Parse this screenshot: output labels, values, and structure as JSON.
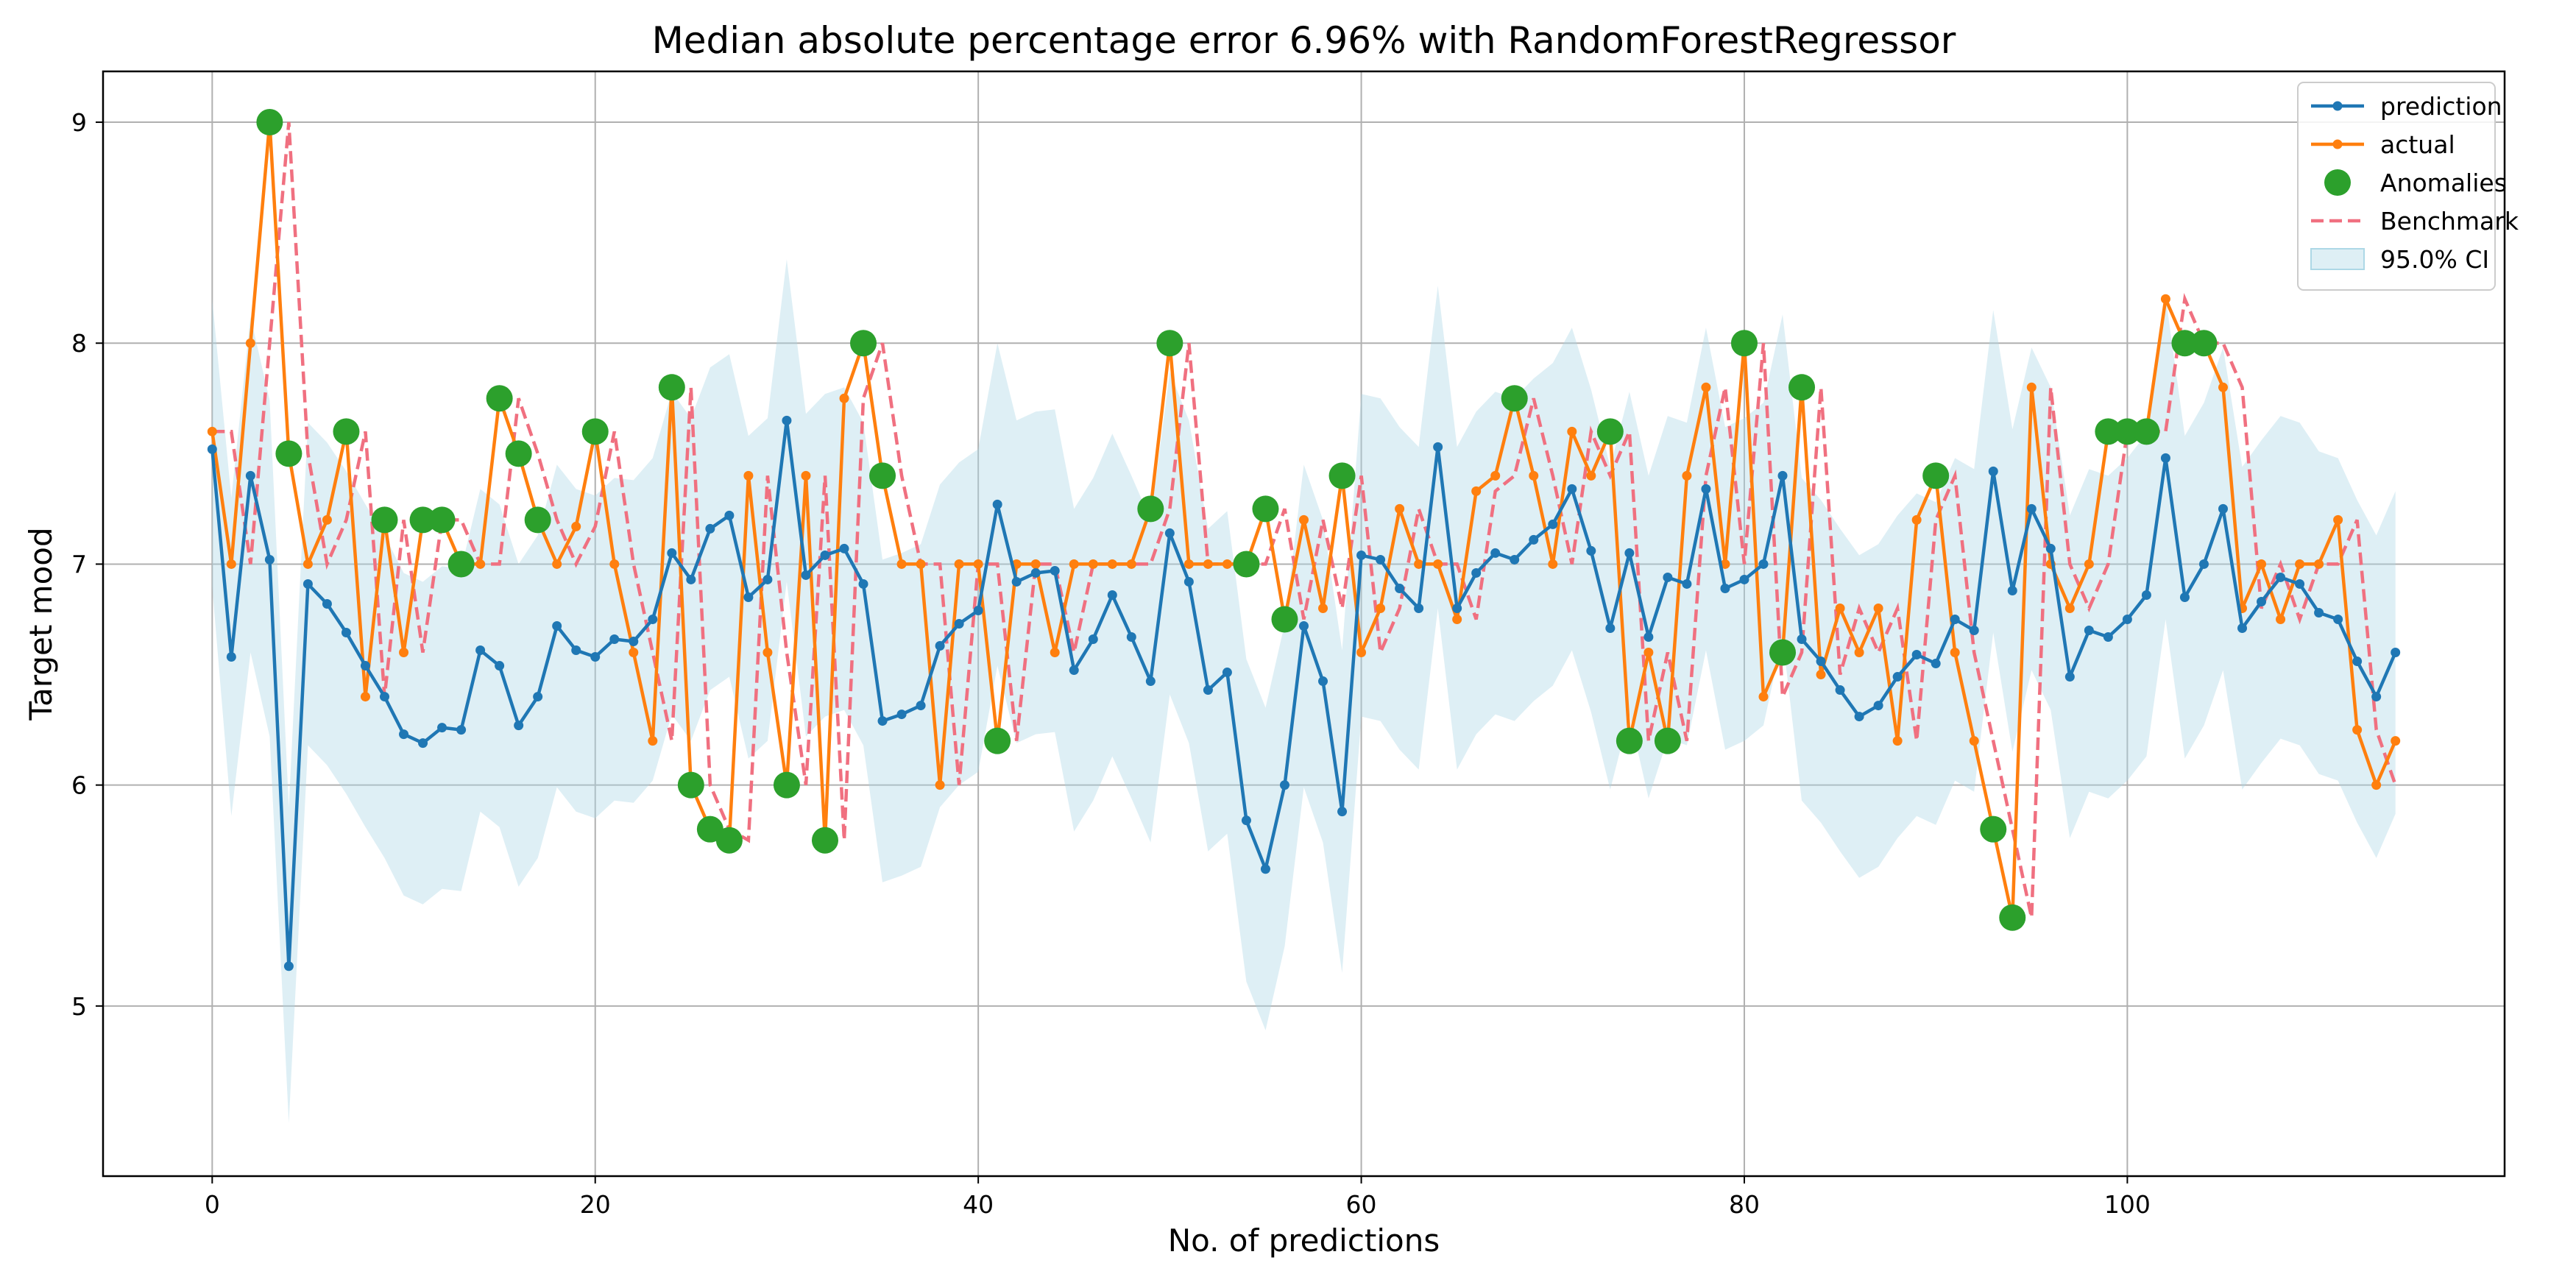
{
  "chart_data": {
    "type": "line",
    "title": "Median absolute percentage error 6.96% with RandomForestRegressor",
    "xlabel": "No. of predictions",
    "ylabel": "Target mood",
    "xlim": [
      -5.7,
      119.7
    ],
    "ylim": [
      4.23,
      9.23
    ],
    "xticks": [
      0,
      20,
      40,
      60,
      80,
      100
    ],
    "yticks": [
      5,
      6,
      7,
      8,
      9
    ],
    "grid": true,
    "legend_position": "top-right",
    "legend": [
      "prediction",
      "actual",
      "Anomalies",
      "Benchmark",
      "95.0% CI"
    ],
    "colors": {
      "prediction": "#1f77b4",
      "actual": "#ff7f0e",
      "anomalies": "#2ca02c",
      "benchmark": "#f07080",
      "ci": "#add8e6"
    },
    "series": [
      {
        "name": "prediction",
        "values": [
          7.52,
          6.58,
          7.4,
          7.02,
          5.18,
          6.91,
          6.82,
          6.69,
          6.54,
          6.4,
          6.23,
          6.19,
          6.26,
          6.25,
          6.61,
          6.54,
          6.27,
          6.4,
          6.72,
          6.61,
          6.58,
          6.66,
          6.65,
          6.75,
          7.05,
          6.93,
          7.16,
          7.22,
          6.85,
          6.93,
          7.65,
          6.95,
          7.04,
          7.07,
          6.91,
          6.29,
          6.32,
          6.36,
          6.63,
          6.73,
          6.79,
          7.27,
          6.92,
          6.96,
          6.97,
          6.52,
          6.66,
          6.86,
          6.67,
          6.47,
          7.14,
          6.92,
          6.43,
          6.51,
          5.84,
          5.62,
          6.0,
          6.72,
          6.47,
          5.88,
          7.04,
          7.02,
          6.89,
          6.8,
          7.53,
          6.8,
          6.96,
          7.05,
          7.02,
          7.11,
          7.18,
          7.34,
          7.06,
          6.71,
          7.05,
          6.67,
          6.94,
          6.91,
          7.34,
          6.89,
          6.93,
          7.0,
          7.4,
          6.66,
          6.56,
          6.43,
          6.31,
          6.36,
          6.49,
          6.59,
          6.55,
          6.75,
          6.7,
          7.42,
          6.88,
          7.25,
          7.07,
          6.49,
          6.7,
          6.67,
          6.75,
          6.86,
          7.48,
          6.85,
          7.0,
          7.25,
          6.71,
          6.83,
          6.94,
          6.91,
          6.78,
          6.75,
          6.56,
          6.4,
          6.6
        ]
      },
      {
        "name": "actual",
        "values": [
          7.6,
          7.0,
          8.0,
          9.0,
          7.5,
          7.0,
          7.2,
          7.6,
          6.4,
          7.2,
          6.6,
          7.2,
          7.2,
          7.0,
          7.0,
          7.75,
          7.5,
          7.2,
          7.0,
          7.17,
          7.6,
          7.0,
          6.6,
          6.2,
          7.8,
          6.0,
          5.8,
          5.75,
          7.4,
          6.6,
          6.0,
          7.4,
          5.75,
          7.75,
          8.0,
          7.4,
          7.0,
          7.0,
          6.0,
          7.0,
          7.0,
          6.2,
          7.0,
          7.0,
          6.6,
          7.0,
          7.0,
          7.0,
          7.0,
          7.25,
          8.0,
          7.0,
          7.0,
          7.0,
          7.0,
          7.25,
          6.75,
          7.2,
          6.8,
          7.4,
          6.6,
          6.8,
          7.25,
          7.0,
          7.0,
          6.75,
          7.33,
          7.4,
          7.75,
          7.4,
          7.0,
          7.6,
          7.4,
          7.6,
          6.2,
          6.6,
          6.2,
          7.4,
          7.8,
          7.0,
          8.0,
          6.4,
          6.6,
          7.8,
          6.5,
          6.8,
          6.6,
          6.8,
          6.2,
          7.2,
          7.4,
          6.6,
          6.2,
          5.8,
          5.4,
          7.8,
          7.0,
          6.8,
          7.0,
          7.6,
          7.6,
          7.6,
          8.2,
          8.0,
          8.0,
          7.8,
          6.8,
          7.0,
          6.75,
          7.0,
          7.0,
          7.2,
          6.25,
          6.0,
          6.2
        ]
      },
      {
        "name": "Benchmark",
        "values": [
          7.6,
          7.6,
          7.0,
          8.0,
          9.0,
          7.5,
          7.0,
          7.2,
          7.6,
          6.4,
          7.2,
          6.6,
          7.2,
          7.2,
          7.0,
          7.0,
          7.75,
          7.5,
          7.2,
          7.0,
          7.17,
          7.6,
          7.0,
          6.6,
          6.2,
          7.8,
          6.0,
          5.8,
          5.75,
          7.4,
          6.6,
          6.0,
          7.4,
          5.75,
          7.75,
          8.0,
          7.4,
          7.0,
          7.0,
          6.0,
          7.0,
          7.0,
          6.2,
          7.0,
          7.0,
          6.6,
          7.0,
          7.0,
          7.0,
          7.0,
          7.25,
          8.0,
          7.0,
          7.0,
          7.0,
          7.0,
          7.25,
          6.75,
          7.2,
          6.8,
          7.4,
          6.6,
          6.8,
          7.25,
          7.0,
          7.0,
          6.75,
          7.33,
          7.4,
          7.75,
          7.4,
          7.0,
          7.6,
          7.4,
          7.6,
          6.2,
          6.6,
          6.2,
          7.4,
          7.8,
          7.0,
          8.0,
          6.4,
          6.6,
          7.8,
          6.5,
          6.8,
          6.6,
          6.8,
          6.2,
          7.2,
          7.4,
          6.6,
          6.2,
          5.8,
          5.4,
          7.8,
          7.0,
          6.8,
          7.0,
          7.6,
          7.6,
          7.6,
          8.2,
          8.0,
          8.0,
          7.8,
          6.8,
          7.0,
          6.75,
          7.0,
          7.0,
          7.2,
          6.25,
          6.0
        ]
      },
      {
        "name": "Anomalies",
        "points": [
          [
            3,
            9.0
          ],
          [
            4,
            7.5
          ],
          [
            7,
            7.6
          ],
          [
            9,
            7.2
          ],
          [
            11,
            7.2
          ],
          [
            12,
            7.2
          ],
          [
            13,
            7.0
          ],
          [
            15,
            7.75
          ],
          [
            16,
            7.5
          ],
          [
            17,
            7.2
          ],
          [
            20,
            7.6
          ],
          [
            24,
            7.8
          ],
          [
            25,
            6.0
          ],
          [
            26,
            5.8
          ],
          [
            27,
            5.75
          ],
          [
            30,
            6.0
          ],
          [
            32,
            5.75
          ],
          [
            34,
            8.0
          ],
          [
            35,
            7.4
          ],
          [
            41,
            6.2
          ],
          [
            49,
            7.25
          ],
          [
            50,
            8.0
          ],
          [
            54,
            7.0
          ],
          [
            55,
            7.25
          ],
          [
            56,
            6.75
          ],
          [
            59,
            7.4
          ],
          [
            68,
            7.75
          ],
          [
            73,
            7.6
          ],
          [
            74,
            6.2
          ],
          [
            76,
            6.2
          ],
          [
            80,
            8.0
          ],
          [
            82,
            6.6
          ],
          [
            83,
            7.8
          ],
          [
            90,
            7.4
          ],
          [
            93,
            5.8
          ],
          [
            94,
            5.4
          ],
          [
            99,
            7.6
          ],
          [
            100,
            7.6
          ],
          [
            101,
            7.6
          ],
          [
            103,
            8.0
          ],
          [
            104,
            8.0
          ]
        ]
      },
      {
        "name": "95.0% CI",
        "lower": [
          6.9,
          5.86,
          6.6,
          6.22,
          4.47,
          6.18,
          6.09,
          5.96,
          5.81,
          5.67,
          5.5,
          5.46,
          5.53,
          5.52,
          5.88,
          5.81,
          5.54,
          5.67,
          5.99,
          5.88,
          5.85,
          5.93,
          5.92,
          6.02,
          6.32,
          6.2,
          6.43,
          6.49,
          6.12,
          6.2,
          6.92,
          6.22,
          6.31,
          6.34,
          6.18,
          5.56,
          5.59,
          5.63,
          5.9,
          6.0,
          6.06,
          6.54,
          6.19,
          6.23,
          6.24,
          5.79,
          5.93,
          6.13,
          5.94,
          5.74,
          6.41,
          6.19,
          5.7,
          5.78,
          5.11,
          4.89,
          5.27,
          5.99,
          5.74,
          5.15,
          6.31,
          6.29,
          6.16,
          6.07,
          6.8,
          6.07,
          6.23,
          6.32,
          6.29,
          6.38,
          6.45,
          6.61,
          6.33,
          5.98,
          6.32,
          5.94,
          6.21,
          6.18,
          6.61,
          6.16,
          6.2,
          6.27,
          6.67,
          5.93,
          5.83,
          5.7,
          5.58,
          5.63,
          5.76,
          5.86,
          5.82,
          6.02,
          5.97,
          6.69,
          6.15,
          6.52,
          6.34,
          5.76,
          5.97,
          5.94,
          6.02,
          6.13,
          6.75,
          6.12,
          6.27,
          6.52,
          5.98,
          6.1,
          6.21,
          6.18,
          6.05,
          6.02,
          5.83,
          5.67,
          5.87
        ],
        "upper": [
          8.2,
          7.3,
          8.12,
          7.74,
          5.9,
          7.64,
          7.55,
          7.42,
          7.27,
          7.13,
          6.96,
          6.92,
          6.99,
          6.98,
          7.34,
          7.27,
          7.0,
          7.13,
          7.45,
          7.34,
          7.31,
          7.39,
          7.38,
          7.48,
          7.78,
          7.66,
          7.89,
          7.95,
          7.58,
          7.66,
          8.38,
          7.68,
          7.77,
          7.8,
          7.64,
          7.02,
          7.05,
          7.09,
          7.36,
          7.46,
          7.52,
          8.0,
          7.65,
          7.69,
          7.7,
          7.25,
          7.39,
          7.59,
          7.4,
          7.2,
          7.87,
          7.65,
          7.16,
          7.24,
          6.57,
          6.35,
          6.73,
          7.45,
          7.2,
          6.61,
          7.77,
          7.75,
          7.62,
          7.53,
          8.26,
          7.53,
          7.69,
          7.78,
          7.75,
          7.84,
          7.91,
          8.07,
          7.79,
          7.44,
          7.78,
          7.4,
          7.67,
          7.64,
          8.07,
          7.62,
          7.66,
          7.73,
          8.13,
          7.39,
          7.29,
          7.16,
          7.04,
          7.09,
          7.22,
          7.32,
          7.28,
          7.48,
          7.43,
          8.15,
          7.61,
          7.98,
          7.8,
          7.22,
          7.43,
          7.4,
          7.48,
          7.59,
          8.21,
          7.58,
          7.73,
          7.98,
          7.44,
          7.56,
          7.67,
          7.64,
          7.51,
          7.48,
          7.29,
          7.13,
          7.33
        ]
      }
    ]
  }
}
